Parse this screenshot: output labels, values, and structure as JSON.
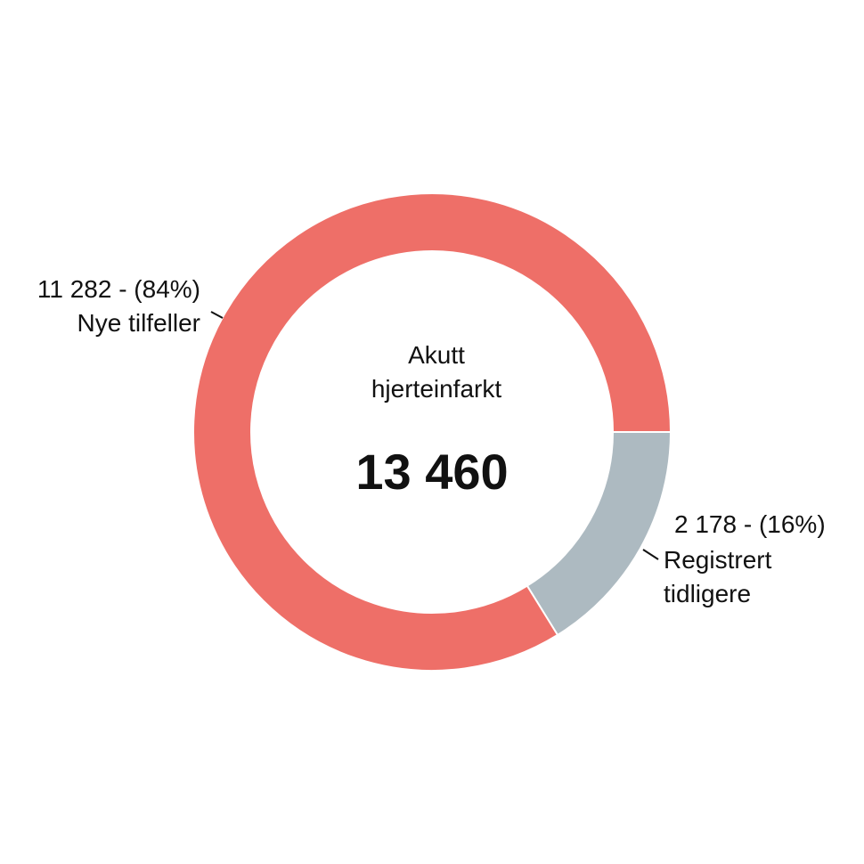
{
  "chart_data": {
    "type": "donut",
    "title": "Akutt hjerteinfarkt",
    "total": {
      "value": 13460,
      "label": "13 460"
    },
    "categories": [
      "Nye tilfeller",
      "Registrert tidligere"
    ],
    "values": [
      11282,
      2178
    ],
    "value_labels": [
      "11 282 - (84%)",
      "2 178 - (16%)"
    ],
    "colors": [
      "#ee6f68",
      "#adbac1"
    ]
  }
}
